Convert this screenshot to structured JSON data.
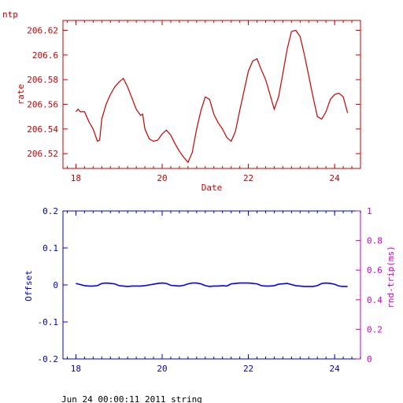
{
  "header_label": "ntp",
  "footer_text": "Jun 24 00:00:11 2011 string",
  "colors": {
    "top": "#cc0000",
    "offset": "#0000cc",
    "rtt": "#cc00cc"
  },
  "chart_data": [
    {
      "type": "line",
      "title": "",
      "xlabel": "Date",
      "ylabel": "rate",
      "xlim": [
        17.7,
        24.6
      ],
      "ylim": [
        206.508,
        206.628
      ],
      "xticks": [
        18,
        20,
        22,
        24
      ],
      "xtick_labels": [
        "18",
        "20",
        "22",
        "24"
      ],
      "yticks": [
        206.52,
        206.54,
        206.56,
        206.58,
        206.6,
        206.62
      ],
      "ytick_labels": [
        "206.52",
        "206.54",
        "206.56",
        "206.58",
        "206.6",
        "206.62"
      ],
      "grid": false,
      "series": [
        {
          "x": [
            18.0,
            18.05,
            18.1,
            18.2,
            18.3,
            18.4,
            18.5,
            18.55,
            18.6,
            18.7,
            18.8,
            18.9,
            19.0,
            19.1,
            19.2,
            19.3,
            19.4,
            19.5,
            19.55,
            19.6,
            19.7,
            19.8,
            19.9,
            20.0,
            20.1,
            20.2,
            20.3,
            20.4,
            20.5,
            20.6,
            20.7,
            20.8,
            20.9,
            21.0,
            21.1,
            21.2,
            21.3,
            21.4,
            21.5,
            21.6,
            21.7,
            21.8,
            21.9,
            22.0,
            22.1,
            22.2,
            22.3,
            22.4,
            22.5,
            22.6,
            22.7,
            22.8,
            22.9,
            23.0,
            23.1,
            23.2,
            23.3,
            23.4,
            23.5,
            23.6,
            23.7,
            23.8,
            23.9,
            24.0,
            24.1,
            24.2,
            24.3
          ],
          "y": [
            206.554,
            206.556,
            206.554,
            206.554,
            206.546,
            206.54,
            206.53,
            206.531,
            206.548,
            206.56,
            206.568,
            206.574,
            206.578,
            206.581,
            206.574,
            206.565,
            206.556,
            206.551,
            206.552,
            206.54,
            206.532,
            206.53,
            206.531,
            206.536,
            206.539,
            206.535,
            206.528,
            206.522,
            206.517,
            206.513,
            206.521,
            206.54,
            206.555,
            206.566,
            206.564,
            206.552,
            206.545,
            206.54,
            206.533,
            206.53,
            206.538,
            206.555,
            206.571,
            206.587,
            206.595,
            206.597,
            206.588,
            206.58,
            206.568,
            206.556,
            206.566,
            206.585,
            206.605,
            206.619,
            206.62,
            206.615,
            206.6,
            206.583,
            206.566,
            206.55,
            206.548,
            206.554,
            206.564,
            206.568,
            206.569,
            206.566,
            206.553
          ]
        }
      ]
    },
    {
      "type": "line",
      "title": "",
      "xlabel": "",
      "ylabel": "Offset",
      "ylabel_right": "rnd-trip(ms)",
      "xlim": [
        17.7,
        24.6
      ],
      "ylim": [
        -0.2,
        0.2
      ],
      "ylim_right": [
        0,
        1
      ],
      "xticks": [
        18,
        20,
        22,
        24
      ],
      "xtick_labels": [
        "18",
        "20",
        "22",
        "24"
      ],
      "yticks": [
        -0.2,
        -0.1,
        0,
        0.1,
        0.2
      ],
      "ytick_labels": [
        "-0.2",
        "-0.1",
        "0",
        "0.1",
        "0.2"
      ],
      "yticks_right": [
        0,
        0.2,
        0.4,
        0.6,
        0.8,
        1
      ],
      "ytick_labels_right": [
        "0",
        "0.2",
        "0.4",
        "0.6",
        "0.8",
        "1"
      ],
      "grid": false,
      "series": [
        {
          "x": [
            18.0,
            18.1,
            18.2,
            18.3,
            18.4,
            18.5,
            18.6,
            18.7,
            18.8,
            18.9,
            19.0,
            19.1,
            19.2,
            19.3,
            19.4,
            19.5,
            19.6,
            19.7,
            19.8,
            19.9,
            20.0,
            20.1,
            20.2,
            20.3,
            20.4,
            20.5,
            20.6,
            20.7,
            20.8,
            20.9,
            21.0,
            21.1,
            21.2,
            21.3,
            21.4,
            21.5,
            21.6,
            21.7,
            21.8,
            21.9,
            22.0,
            22.1,
            22.2,
            22.3,
            22.4,
            22.5,
            22.6,
            22.7,
            22.8,
            22.9,
            23.0,
            23.1,
            23.2,
            23.3,
            23.4,
            23.5,
            23.6,
            23.7,
            23.8,
            23.9,
            24.0,
            24.1,
            24.2,
            24.3
          ],
          "y": [
            0.004,
            0.001,
            -0.002,
            -0.003,
            -0.003,
            -0.002,
            0.004,
            0.005,
            0.004,
            0.003,
            -0.002,
            -0.003,
            -0.004,
            -0.003,
            -0.003,
            -0.003,
            -0.002,
            0.0,
            0.002,
            0.004,
            0.005,
            0.004,
            -0.001,
            -0.002,
            -0.003,
            -0.001,
            0.003,
            0.005,
            0.005,
            0.003,
            -0.002,
            -0.004,
            -0.003,
            -0.003,
            -0.002,
            -0.003,
            0.003,
            0.004,
            0.005,
            0.005,
            0.005,
            0.004,
            0.003,
            -0.002,
            -0.003,
            -0.003,
            -0.002,
            0.002,
            0.003,
            0.004,
            0.001,
            -0.002,
            -0.003,
            -0.004,
            -0.004,
            -0.004,
            -0.002,
            0.004,
            0.005,
            0.004,
            0.002,
            -0.003,
            -0.004,
            -0.004
          ]
        }
      ]
    }
  ]
}
